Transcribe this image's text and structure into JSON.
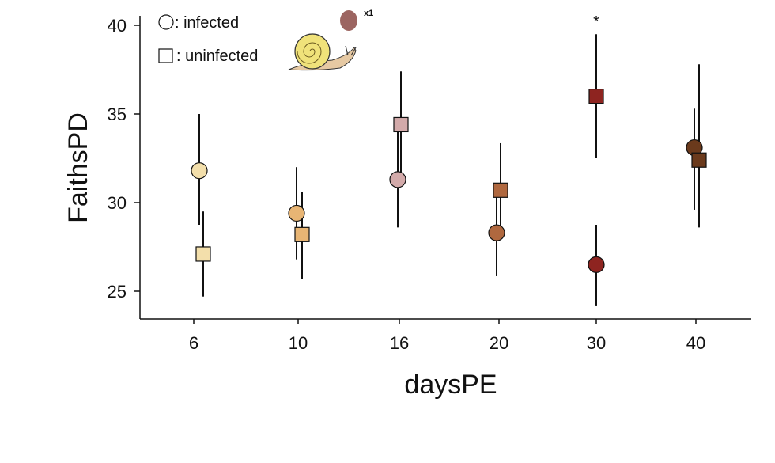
{
  "chart_data": {
    "type": "scatter",
    "xlabel": "daysPE",
    "ylabel": "FaithsPD",
    "categories": [
      "6",
      "10",
      "16",
      "20",
      "30",
      "40"
    ],
    "yticks": [
      25,
      30,
      35,
      40
    ],
    "ylim": [
      23.4,
      41
    ],
    "grid": false,
    "legend": {
      "placement": "top-left",
      "entries": [
        {
          "symbol": "circle",
          "label": ": infected"
        },
        {
          "symbol": "square",
          "label": ": uninfected"
        }
      ]
    },
    "inset_label": "x1",
    "colors": [
      "#f3dfab",
      "#e8b574",
      "#d3aaaa",
      "#b0683f",
      "#8e2420",
      "#6b3a1c"
    ],
    "series": [
      {
        "group": "infected",
        "symbol": "circle",
        "mean": [
          31.8,
          29.4,
          31.3,
          28.3,
          26.5,
          33.1
        ],
        "lower": [
          28.75,
          26.8,
          28.6,
          25.85,
          24.2,
          29.6
        ],
        "upper": [
          35.0,
          32.0,
          34.0,
          30.3,
          28.75,
          35.3
        ]
      },
      {
        "group": "uninfected",
        "symbol": "square",
        "mean": [
          27.1,
          28.2,
          34.4,
          30.7,
          36.0,
          32.4
        ],
        "lower": [
          24.7,
          25.7,
          31.5,
          28.5,
          32.5,
          28.6
        ],
        "upper": [
          29.5,
          30.6,
          37.4,
          33.35,
          39.5,
          37.8
        ]
      }
    ],
    "annotations": [
      {
        "category": "30",
        "text": "*"
      }
    ]
  }
}
